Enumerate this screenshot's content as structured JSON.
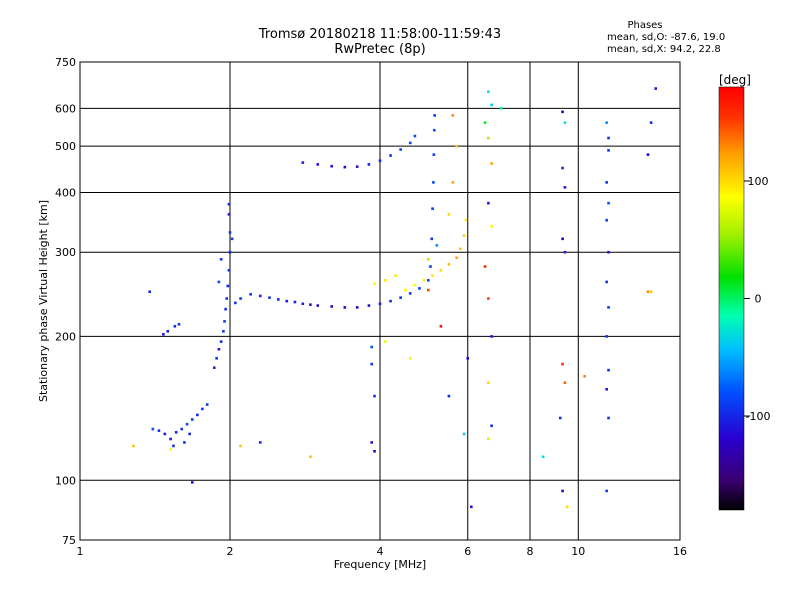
{
  "chart_data": {
    "type": "scatter",
    "title": "Tromsø 20180218 11:58:00-11:59:43",
    "subtitle": "RwPretec (8p)",
    "xlabel": "Frequency [MHz]",
    "ylabel": "Stationary phase Virtual Height [km]",
    "x_scale": "log",
    "y_scale": "log",
    "xlim": [
      1,
      16
    ],
    "ylim": [
      75,
      750
    ],
    "x_ticks": [
      1,
      2,
      4,
      6,
      8,
      10,
      16
    ],
    "x_tick_labels": [
      "1",
      "2",
      "4",
      "6",
      "8",
      "10",
      "16"
    ],
    "y_ticks": [
      75,
      100,
      200,
      300,
      400,
      500,
      600,
      750
    ],
    "y_tick_labels": [
      "75",
      "100",
      "200",
      "300",
      "400",
      "500",
      "600",
      "750"
    ],
    "grid": true,
    "phase_box": {
      "title": "Phases",
      "line1": "mean, sd,O: -87.6, 19.0",
      "line2": "mean, sd,X:  94.2, 22.8"
    },
    "colorbar": {
      "label": "[deg]",
      "range": [
        -180,
        180
      ],
      "ticks": [
        100,
        0,
        -100
      ],
      "tick_labels": [
        "100",
        "0",
        "-100"
      ],
      "colormap": "rainbow"
    },
    "series": [
      {
        "points": [
          [
            1.38,
            248,
            -100
          ],
          [
            1.47,
            202,
            -110
          ],
          [
            1.5,
            205,
            -105
          ],
          [
            1.55,
            210,
            -100
          ],
          [
            1.58,
            212,
            -95
          ],
          [
            1.4,
            128,
            -80
          ],
          [
            1.44,
            127,
            -95
          ],
          [
            1.48,
            125,
            -105
          ],
          [
            1.52,
            122,
            -110
          ],
          [
            1.56,
            126,
            -100
          ],
          [
            1.6,
            128,
            -95
          ],
          [
            1.64,
            131,
            -85
          ],
          [
            1.68,
            134,
            -90
          ],
          [
            1.72,
            137,
            -100
          ],
          [
            1.76,
            141,
            -95
          ],
          [
            1.8,
            144,
            -90
          ],
          [
            1.54,
            118,
            -100
          ],
          [
            1.62,
            120,
            -95
          ],
          [
            1.66,
            125,
            -100
          ],
          [
            1.86,
            172,
            -100
          ],
          [
            1.88,
            180,
            -95
          ],
          [
            1.9,
            188,
            -105
          ],
          [
            1.92,
            195,
            -100
          ],
          [
            1.94,
            205,
            -95
          ],
          [
            1.95,
            215,
            -90
          ],
          [
            1.96,
            228,
            -100
          ],
          [
            1.97,
            240,
            -95
          ],
          [
            1.98,
            255,
            -100
          ],
          [
            1.99,
            275,
            -95
          ],
          [
            2.0,
            300,
            -100
          ],
          [
            2.0,
            330,
            -95
          ],
          [
            1.99,
            360,
            -105
          ],
          [
            1.99,
            378,
            -100
          ],
          [
            2.02,
            320,
            -90
          ],
          [
            1.9,
            260,
            -85
          ],
          [
            1.92,
            290,
            -90
          ],
          [
            2.05,
            235,
            -95
          ],
          [
            2.1,
            240,
            -90
          ],
          [
            2.2,
            245,
            -95
          ],
          [
            2.3,
            243,
            -100
          ],
          [
            2.4,
            241,
            -95
          ],
          [
            2.5,
            239,
            -100
          ],
          [
            2.6,
            237,
            -105
          ],
          [
            2.7,
            236,
            -100
          ],
          [
            2.8,
            234,
            -105
          ],
          [
            2.9,
            233,
            -110
          ],
          [
            3.0,
            232,
            -115
          ],
          [
            3.2,
            231,
            -115
          ],
          [
            3.4,
            230,
            -120
          ],
          [
            3.6,
            230,
            -115
          ],
          [
            3.8,
            232,
            -110
          ],
          [
            4.0,
            234,
            -105
          ],
          [
            4.2,
            237,
            -100
          ],
          [
            4.4,
            241,
            -95
          ],
          [
            4.6,
            246,
            -90
          ],
          [
            4.8,
            252,
            -90
          ],
          [
            5.0,
            262,
            -85
          ],
          [
            5.05,
            280,
            -90
          ],
          [
            5.08,
            320,
            -95
          ],
          [
            5.1,
            370,
            -90
          ],
          [
            5.12,
            420,
            -85
          ],
          [
            5.13,
            480,
            -90
          ],
          [
            5.14,
            540,
            -85
          ],
          [
            5.15,
            580,
            -90
          ],
          [
            2.8,
            462,
            -105
          ],
          [
            3.0,
            458,
            -110
          ],
          [
            3.2,
            454,
            -110
          ],
          [
            3.4,
            452,
            -115
          ],
          [
            3.6,
            453,
            -110
          ],
          [
            3.8,
            458,
            -105
          ],
          [
            4.0,
            466,
            -100
          ],
          [
            4.2,
            478,
            -95
          ],
          [
            4.4,
            492,
            -90
          ],
          [
            4.6,
            508,
            -90
          ],
          [
            4.7,
            525,
            -85
          ],
          [
            4.5,
            250,
            80
          ],
          [
            4.7,
            256,
            85
          ],
          [
            4.9,
            262,
            90
          ],
          [
            5.1,
            268,
            95
          ],
          [
            5.3,
            275,
            100
          ],
          [
            5.5,
            283,
            110
          ],
          [
            5.7,
            292,
            120
          ],
          [
            5.8,
            305,
            110
          ],
          [
            5.9,
            325,
            100
          ],
          [
            5.95,
            350,
            95
          ],
          [
            3.9,
            258,
            90
          ],
          [
            4.1,
            262,
            95
          ],
          [
            4.3,
            268,
            80
          ],
          [
            5.0,
            290,
            60
          ],
          [
            5.2,
            310,
            -60
          ],
          [
            5.5,
            360,
            100
          ],
          [
            5.6,
            420,
            120
          ],
          [
            5.7,
            500,
            110
          ],
          [
            5.6,
            580,
            130
          ],
          [
            6.6,
            650,
            -30
          ],
          [
            6.7,
            610,
            -40
          ],
          [
            6.5,
            560,
            10
          ],
          [
            6.6,
            520,
            60
          ],
          [
            6.7,
            460,
            120
          ],
          [
            6.6,
            380,
            -110
          ],
          [
            6.7,
            340,
            90
          ],
          [
            6.5,
            280,
            160
          ],
          [
            6.6,
            240,
            150
          ],
          [
            6.7,
            200,
            -110
          ],
          [
            6.6,
            160,
            100
          ],
          [
            6.7,
            130,
            -100
          ],
          [
            6.6,
            122,
            70
          ],
          [
            7.0,
            600,
            -20
          ],
          [
            9.3,
            590,
            -120
          ],
          [
            9.4,
            560,
            -30
          ],
          [
            9.3,
            450,
            -100
          ],
          [
            9.4,
            410,
            -110
          ],
          [
            9.3,
            320,
            -120
          ],
          [
            9.4,
            300,
            -105
          ],
          [
            9.3,
            175,
            160
          ],
          [
            9.4,
            160,
            140
          ],
          [
            9.2,
            135,
            -100
          ],
          [
            9.3,
            95,
            -120
          ],
          [
            9.5,
            88,
            100
          ],
          [
            11.4,
            560,
            -60
          ],
          [
            11.5,
            520,
            -100
          ],
          [
            11.5,
            490,
            -90
          ],
          [
            11.4,
            420,
            -100
          ],
          [
            11.5,
            380,
            -80
          ],
          [
            11.4,
            350,
            -90
          ],
          [
            11.5,
            300,
            -110
          ],
          [
            11.4,
            260,
            -100
          ],
          [
            11.5,
            230,
            -90
          ],
          [
            11.4,
            200,
            -95
          ],
          [
            11.5,
            170,
            -100
          ],
          [
            11.4,
            155,
            -110
          ],
          [
            11.5,
            135,
            -100
          ],
          [
            11.4,
            95,
            -90
          ],
          [
            14.3,
            660,
            -110
          ],
          [
            14.0,
            560,
            -100
          ],
          [
            13.8,
            480,
            -120
          ],
          [
            14.0,
            248,
            110
          ],
          [
            3.85,
            190,
            -80
          ],
          [
            3.85,
            175,
            -90
          ],
          [
            3.9,
            150,
            -100
          ],
          [
            3.85,
            120,
            -110
          ],
          [
            3.9,
            115,
            -120
          ],
          [
            4.1,
            195,
            80
          ],
          [
            4.6,
            180,
            90
          ],
          [
            5.0,
            250,
            150
          ],
          [
            5.3,
            210,
            170
          ],
          [
            5.5,
            150,
            -100
          ],
          [
            5.9,
            125,
            -40
          ],
          [
            6.0,
            180,
            -120
          ],
          [
            6.1,
            88,
            -110
          ],
          [
            1.28,
            118,
            110
          ],
          [
            1.52,
            116,
            90
          ],
          [
            1.68,
            99,
            -110
          ],
          [
            2.1,
            118,
            110
          ],
          [
            2.3,
            120,
            -100
          ],
          [
            2.9,
            112,
            110
          ],
          [
            8.5,
            112,
            -30
          ],
          [
            10.3,
            165,
            130
          ],
          [
            13.8,
            248,
            130
          ]
        ]
      }
    ]
  }
}
